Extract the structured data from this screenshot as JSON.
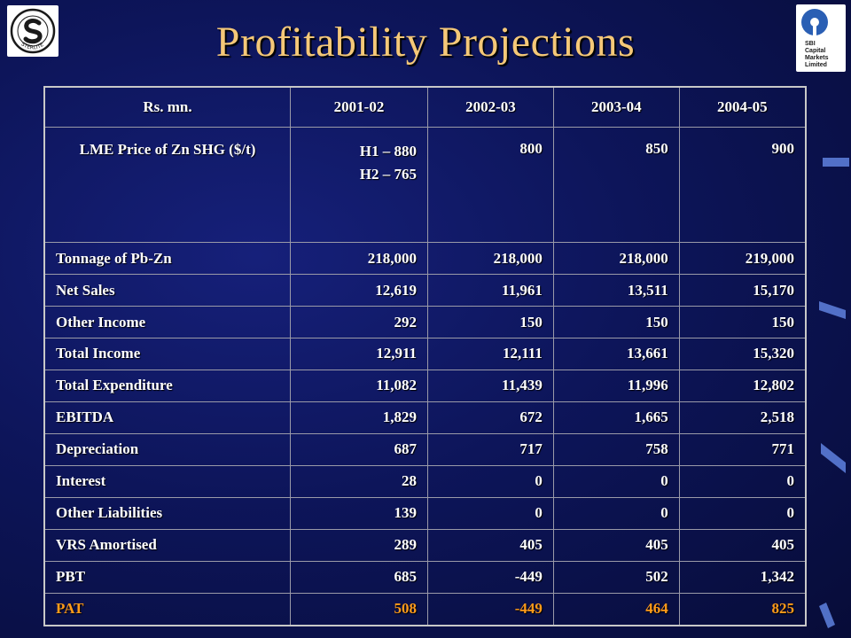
{
  "slide": {
    "title": "Profitability Projections"
  },
  "table": {
    "headers": [
      "Rs. mn.",
      "2001-02",
      "2002-03",
      "2003-04",
      "2004-05"
    ],
    "lme": {
      "label": "LME Price of Zn SHG ($/t)",
      "h1": "H1 – 880",
      "h2": "H2 – 765",
      "values": [
        "800",
        "850",
        "900"
      ]
    },
    "rows": [
      {
        "label": "Tonnage of Pb-Zn",
        "values": [
          "218,000",
          "218,000",
          "218,000",
          "219,000"
        ]
      },
      {
        "label": "Net Sales",
        "values": [
          "12,619",
          "11,961",
          "13,511",
          "15,170"
        ]
      },
      {
        "label": "Other Income",
        "values": [
          "292",
          "150",
          "150",
          "150"
        ]
      },
      {
        "label": "Total Income",
        "values": [
          "12,911",
          "12,111",
          "13,661",
          "15,320"
        ]
      },
      {
        "label": "Total Expenditure",
        "values": [
          "11,082",
          "11,439",
          "11,996",
          "12,802"
        ]
      },
      {
        "label": "EBITDA",
        "values": [
          "1,829",
          "672",
          "1,665",
          "2,518"
        ]
      },
      {
        "label": "Depreciation",
        "values": [
          "687",
          "717",
          "758",
          "771"
        ]
      },
      {
        "label": "Interest",
        "values": [
          "28",
          "0",
          "0",
          "0"
        ]
      },
      {
        "label": "Other Liabilities",
        "values": [
          "139",
          "0",
          "0",
          "0"
        ]
      },
      {
        "label": "VRS Amortised",
        "values": [
          "289",
          "405",
          "405",
          "405"
        ]
      },
      {
        "label": "PBT",
        "values": [
          "685",
          "-449",
          "502",
          "1,342"
        ]
      },
      {
        "label": "PAT",
        "values": [
          "508",
          "-449",
          "464",
          "825"
        ]
      }
    ]
  },
  "logos": {
    "left": {
      "icon": "sterlite-logo-icon",
      "text": "STERLITE"
    },
    "right": {
      "icon": "sbi-caps-logo-icon",
      "text": [
        "SBI",
        "Capital",
        "Markets",
        "Limited"
      ]
    }
  },
  "colors": {
    "background": "#0d155a",
    "title": "#f5c878",
    "text": "#ffffff",
    "pat_row": "#ff9b1a",
    "accent_bars": "#5a7bd6"
  }
}
